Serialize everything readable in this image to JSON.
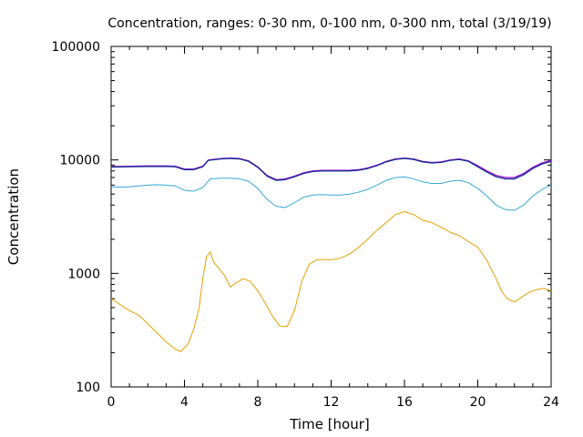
{
  "chart_data": {
    "type": "line",
    "title": "Concentration, ranges: 0-30 nm, 0-100 nm, 0-300 nm, total (3/19/19)",
    "xlabel": "Time [hour]",
    "ylabel": "Concentration",
    "xlim": [
      0,
      24
    ],
    "ylim": [
      100,
      100000
    ],
    "yscale": "log",
    "grid": false,
    "xticks": [
      0,
      4,
      8,
      12,
      16,
      20,
      24
    ],
    "yticks": [
      100,
      1000,
      10000,
      100000
    ],
    "ytick_labels": [
      "100",
      "1000",
      "10000",
      "100000"
    ],
    "series": [
      {
        "color": "#e6a000",
        "points": [
          [
            0,
            600
          ],
          [
            0.5,
            530
          ],
          [
            1,
            470
          ],
          [
            1.5,
            430
          ],
          [
            2,
            360
          ],
          [
            2.5,
            300
          ],
          [
            3,
            250
          ],
          [
            3.5,
            215
          ],
          [
            3.8,
            205
          ],
          [
            4.2,
            240
          ],
          [
            4.5,
            320
          ],
          [
            4.8,
            500
          ],
          [
            5,
            900
          ],
          [
            5.2,
            1400
          ],
          [
            5.4,
            1550
          ],
          [
            5.6,
            1250
          ],
          [
            5.9,
            1100
          ],
          [
            6.2,
            950
          ],
          [
            6.5,
            760
          ],
          [
            6.8,
            820
          ],
          [
            7.2,
            900
          ],
          [
            7.6,
            850
          ],
          [
            8,
            700
          ],
          [
            8.4,
            550
          ],
          [
            8.8,
            420
          ],
          [
            9.2,
            345
          ],
          [
            9.6,
            340
          ],
          [
            10,
            470
          ],
          [
            10.4,
            850
          ],
          [
            10.8,
            1200
          ],
          [
            11.2,
            1320
          ],
          [
            11.6,
            1320
          ],
          [
            12,
            1320
          ],
          [
            12.5,
            1360
          ],
          [
            13,
            1480
          ],
          [
            13.5,
            1700
          ],
          [
            14,
            2000
          ],
          [
            14.5,
            2400
          ],
          [
            15,
            2800
          ],
          [
            15.5,
            3300
          ],
          [
            16,
            3500
          ],
          [
            16.5,
            3300
          ],
          [
            17,
            2950
          ],
          [
            17.5,
            2800
          ],
          [
            18,
            2550
          ],
          [
            18.5,
            2300
          ],
          [
            19,
            2150
          ],
          [
            19.5,
            1900
          ],
          [
            20,
            1700
          ],
          [
            20.5,
            1300
          ],
          [
            21,
            900
          ],
          [
            21.3,
            700
          ],
          [
            21.6,
            600
          ],
          [
            22,
            560
          ],
          [
            22.4,
            620
          ],
          [
            22.8,
            680
          ],
          [
            23.2,
            720
          ],
          [
            23.6,
            740
          ],
          [
            24,
            700
          ]
        ]
      },
      {
        "color": "#35a8d8",
        "points": [
          [
            0,
            5800
          ],
          [
            0.5,
            5750
          ],
          [
            1,
            5800
          ],
          [
            1.5,
            5900
          ],
          [
            2,
            6000
          ],
          [
            2.5,
            6050
          ],
          [
            3,
            6000
          ],
          [
            3.5,
            5900
          ],
          [
            4,
            5400
          ],
          [
            4.5,
            5300
          ],
          [
            5,
            5700
          ],
          [
            5.4,
            6800
          ],
          [
            6,
            6900
          ],
          [
            6.5,
            6900
          ],
          [
            7,
            6800
          ],
          [
            7.5,
            6500
          ],
          [
            8,
            5600
          ],
          [
            8.5,
            4500
          ],
          [
            9,
            3900
          ],
          [
            9.5,
            3800
          ],
          [
            10,
            4200
          ],
          [
            10.5,
            4700
          ],
          [
            11,
            4900
          ],
          [
            11.5,
            4950
          ],
          [
            12,
            4900
          ],
          [
            12.5,
            4900
          ],
          [
            13,
            5000
          ],
          [
            13.5,
            5200
          ],
          [
            14,
            5500
          ],
          [
            14.5,
            6000
          ],
          [
            15,
            6600
          ],
          [
            15.5,
            7000
          ],
          [
            16,
            7100
          ],
          [
            16.5,
            6800
          ],
          [
            17,
            6400
          ],
          [
            17.5,
            6200
          ],
          [
            18,
            6200
          ],
          [
            18.5,
            6500
          ],
          [
            19,
            6600
          ],
          [
            19.5,
            6300
          ],
          [
            20,
            5600
          ],
          [
            20.5,
            4800
          ],
          [
            21,
            4000
          ],
          [
            21.5,
            3650
          ],
          [
            22,
            3600
          ],
          [
            22.5,
            4000
          ],
          [
            23,
            4800
          ],
          [
            23.5,
            5500
          ],
          [
            24,
            6000
          ]
        ]
      },
      {
        "color": "#9400d3",
        "points": [
          [
            0,
            8750
          ],
          [
            1,
            8800
          ],
          [
            2,
            8850
          ],
          [
            3,
            8850
          ],
          [
            3.5,
            8800
          ],
          [
            4,
            8300
          ],
          [
            4.5,
            8300
          ],
          [
            5,
            8800
          ],
          [
            5.3,
            10000
          ],
          [
            6,
            10300
          ],
          [
            6.5,
            10400
          ],
          [
            7,
            10300
          ],
          [
            7.5,
            9800
          ],
          [
            8,
            8700
          ],
          [
            8.5,
            7300
          ],
          [
            9,
            6700
          ],
          [
            9.5,
            6800
          ],
          [
            10,
            7200
          ],
          [
            10.5,
            7700
          ],
          [
            11,
            8000
          ],
          [
            11.5,
            8100
          ],
          [
            12,
            8100
          ],
          [
            13,
            8100
          ],
          [
            13.5,
            8200
          ],
          [
            14,
            8500
          ],
          [
            14.5,
            9000
          ],
          [
            15,
            9700
          ],
          [
            15.5,
            10200
          ],
          [
            16,
            10400
          ],
          [
            16.5,
            10200
          ],
          [
            17,
            9700
          ],
          [
            17.5,
            9500
          ],
          [
            18,
            9600
          ],
          [
            18.5,
            10000
          ],
          [
            19,
            10200
          ],
          [
            19.5,
            9800
          ],
          [
            20,
            8900
          ],
          [
            20.5,
            8000
          ],
          [
            21,
            7300
          ],
          [
            21.5,
            7000
          ],
          [
            22,
            7000
          ],
          [
            22.5,
            7600
          ],
          [
            23,
            8600
          ],
          [
            23.5,
            9400
          ],
          [
            24,
            9900
          ]
        ]
      },
      {
        "color": "#0a2b8c",
        "points": [
          [
            0,
            8650
          ],
          [
            1,
            8700
          ],
          [
            2,
            8750
          ],
          [
            3,
            8750
          ],
          [
            3.5,
            8700
          ],
          [
            4,
            8200
          ],
          [
            4.5,
            8200
          ],
          [
            5,
            8700
          ],
          [
            5.3,
            9900
          ],
          [
            6,
            10200
          ],
          [
            6.5,
            10300
          ],
          [
            7,
            10200
          ],
          [
            7.5,
            9700
          ],
          [
            8,
            8600
          ],
          [
            8.5,
            7200
          ],
          [
            9,
            6600
          ],
          [
            9.5,
            6700
          ],
          [
            10,
            7100
          ],
          [
            10.5,
            7600
          ],
          [
            11,
            7900
          ],
          [
            11.5,
            8000
          ],
          [
            12,
            8000
          ],
          [
            13,
            8000
          ],
          [
            13.5,
            8100
          ],
          [
            14,
            8400
          ],
          [
            14.5,
            8900
          ],
          [
            15,
            9600
          ],
          [
            15.5,
            10100
          ],
          [
            16,
            10300
          ],
          [
            16.5,
            10100
          ],
          [
            17,
            9600
          ],
          [
            17.5,
            9400
          ],
          [
            18,
            9500
          ],
          [
            18.5,
            9900
          ],
          [
            19,
            10100
          ],
          [
            19.5,
            9700
          ],
          [
            20,
            8700
          ],
          [
            20.5,
            7800
          ],
          [
            21,
            7100
          ],
          [
            21.5,
            6800
          ],
          [
            22,
            6800
          ],
          [
            22.5,
            7400
          ],
          [
            23,
            8400
          ],
          [
            23.5,
            9200
          ],
          [
            24,
            9700
          ]
        ]
      }
    ]
  }
}
